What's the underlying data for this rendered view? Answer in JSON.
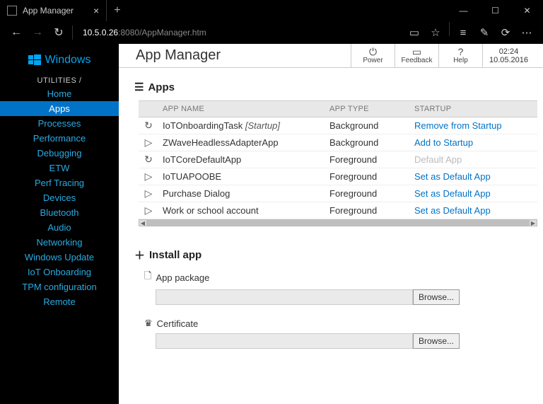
{
  "window": {
    "tab_title": "App Manager",
    "url_host": "10.5.0.26",
    "url_port_path": ":8080/AppManager.htm"
  },
  "sidebar": {
    "brand": "Windows",
    "section": "UTILITIES /",
    "items": [
      {
        "label": "Home",
        "active": false
      },
      {
        "label": "Apps",
        "active": true
      },
      {
        "label": "Processes",
        "active": false
      },
      {
        "label": "Performance",
        "active": false
      },
      {
        "label": "Debugging",
        "active": false
      },
      {
        "label": "ETW",
        "active": false
      },
      {
        "label": "Perf Tracing",
        "active": false
      },
      {
        "label": "Devices",
        "active": false
      },
      {
        "label": "Bluetooth",
        "active": false
      },
      {
        "label": "Audio",
        "active": false
      },
      {
        "label": "Networking",
        "active": false
      },
      {
        "label": "Windows Update",
        "active": false
      },
      {
        "label": "IoT Onboarding",
        "active": false
      },
      {
        "label": "TPM configuration",
        "active": false
      },
      {
        "label": "Remote",
        "active": false
      }
    ]
  },
  "toolbar": {
    "title": "App Manager",
    "buttons": {
      "power": "Power",
      "feedback": "Feedback",
      "help": "Help"
    },
    "time": "02:24",
    "date": "10.05.2016"
  },
  "apps_section": {
    "heading": "Apps",
    "columns": {
      "name": "APP NAME",
      "type": "APP TYPE",
      "startup": "STARTUP"
    },
    "rows": [
      {
        "icon": "restart",
        "name": "IoTOnboardingTask",
        "suffix": "[Startup]",
        "type": "Background",
        "startup": "Remove from Startup",
        "link": true
      },
      {
        "icon": "play",
        "name": "ZWaveHeadlessAdapterApp",
        "suffix": "",
        "type": "Background",
        "startup": "Add to Startup",
        "link": true
      },
      {
        "icon": "restart",
        "name": "IoTCoreDefaultApp",
        "suffix": "",
        "type": "Foreground",
        "startup": "Default App",
        "link": false
      },
      {
        "icon": "play",
        "name": "IoTUAPOOBE",
        "suffix": "",
        "type": "Foreground",
        "startup": "Set as Default App",
        "link": true
      },
      {
        "icon": "play",
        "name": "Purchase Dialog",
        "suffix": "",
        "type": "Foreground",
        "startup": "Set as Default App",
        "link": true
      },
      {
        "icon": "play",
        "name": "Work or school account",
        "suffix": "",
        "type": "Foreground",
        "startup": "Set as Default App",
        "link": true
      }
    ]
  },
  "install_section": {
    "heading": "Install app",
    "package_label": "App package",
    "certificate_label": "Certificate",
    "browse": "Browse..."
  },
  "colors": {
    "accent": "#0173c7",
    "sidebar_link": "#29abe2",
    "brand": "#00a4ef",
    "muted": "#bbbbbb"
  }
}
